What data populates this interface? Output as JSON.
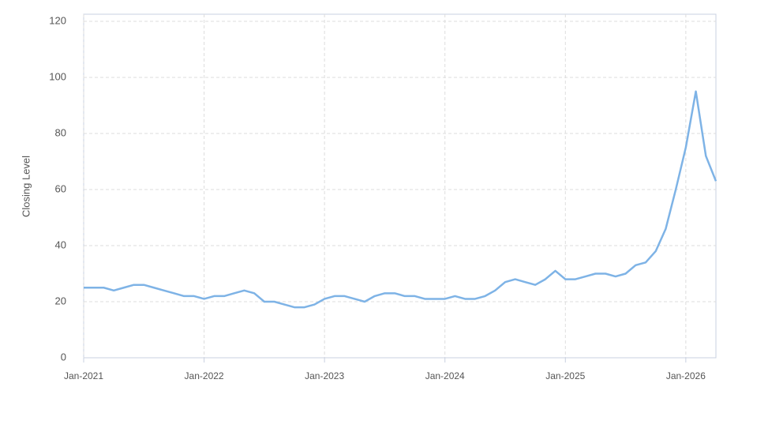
{
  "chart_data": {
    "type": "line",
    "y_label": "Closing Level",
    "x": [
      "2021-01",
      "2021-02",
      "2021-03",
      "2021-04",
      "2021-05",
      "2021-06",
      "2021-07",
      "2021-08",
      "2021-09",
      "2021-10",
      "2021-11",
      "2021-12",
      "2022-01",
      "2022-02",
      "2022-03",
      "2022-04",
      "2022-05",
      "2022-06",
      "2022-07",
      "2022-08",
      "2022-09",
      "2022-10",
      "2022-11",
      "2022-12",
      "2023-01",
      "2023-02",
      "2023-03",
      "2023-04",
      "2023-05",
      "2023-06",
      "2023-07",
      "2023-08",
      "2023-09",
      "2023-10",
      "2023-11",
      "2023-12",
      "2024-01",
      "2024-02",
      "2024-03",
      "2024-04",
      "2024-05",
      "2024-06",
      "2024-07",
      "2024-08",
      "2024-09",
      "2024-10",
      "2024-11",
      "2024-12",
      "2025-01",
      "2025-02",
      "2025-03",
      "2025-04",
      "2025-05",
      "2025-06",
      "2025-07",
      "2025-08",
      "2025-09",
      "2025-10",
      "2025-11",
      "2025-12",
      "2026-01",
      "2026-02",
      "2026-03",
      "2026-04"
    ],
    "series": [
      {
        "name": "Closing Level",
        "color": "#7eb3e6",
        "values": [
          25,
          25,
          25,
          24,
          25,
          26,
          26,
          25,
          24,
          23,
          22,
          22,
          21,
          22,
          22,
          23,
          24,
          23,
          20,
          20,
          19,
          18,
          18,
          19,
          21,
          22,
          22,
          21,
          20,
          22,
          23,
          23,
          22,
          22,
          21,
          21,
          21,
          22,
          21,
          21,
          22,
          24,
          27,
          28,
          27,
          26,
          28,
          31,
          28,
          28,
          29,
          30,
          30,
          29,
          30,
          33,
          34,
          38,
          46,
          60,
          75,
          95,
          72,
          63
        ]
      }
    ],
    "xlim": [
      "2021-01",
      "2026-04"
    ],
    "xticks": [
      {
        "value": "2021-01",
        "label": "Jan-2021"
      },
      {
        "value": "2022-01",
        "label": "Jan-2022"
      },
      {
        "value": "2023-01",
        "label": "Jan-2023"
      },
      {
        "value": "2024-01",
        "label": "Jan-2024"
      },
      {
        "value": "2025-01",
        "label": "Jan-2025"
      },
      {
        "value": "2026-01",
        "label": "Jan-2026"
      }
    ],
    "ylim": [
      0,
      120
    ],
    "yticks": [
      0,
      20,
      40,
      60,
      80,
      100,
      120
    ],
    "grid": true
  }
}
